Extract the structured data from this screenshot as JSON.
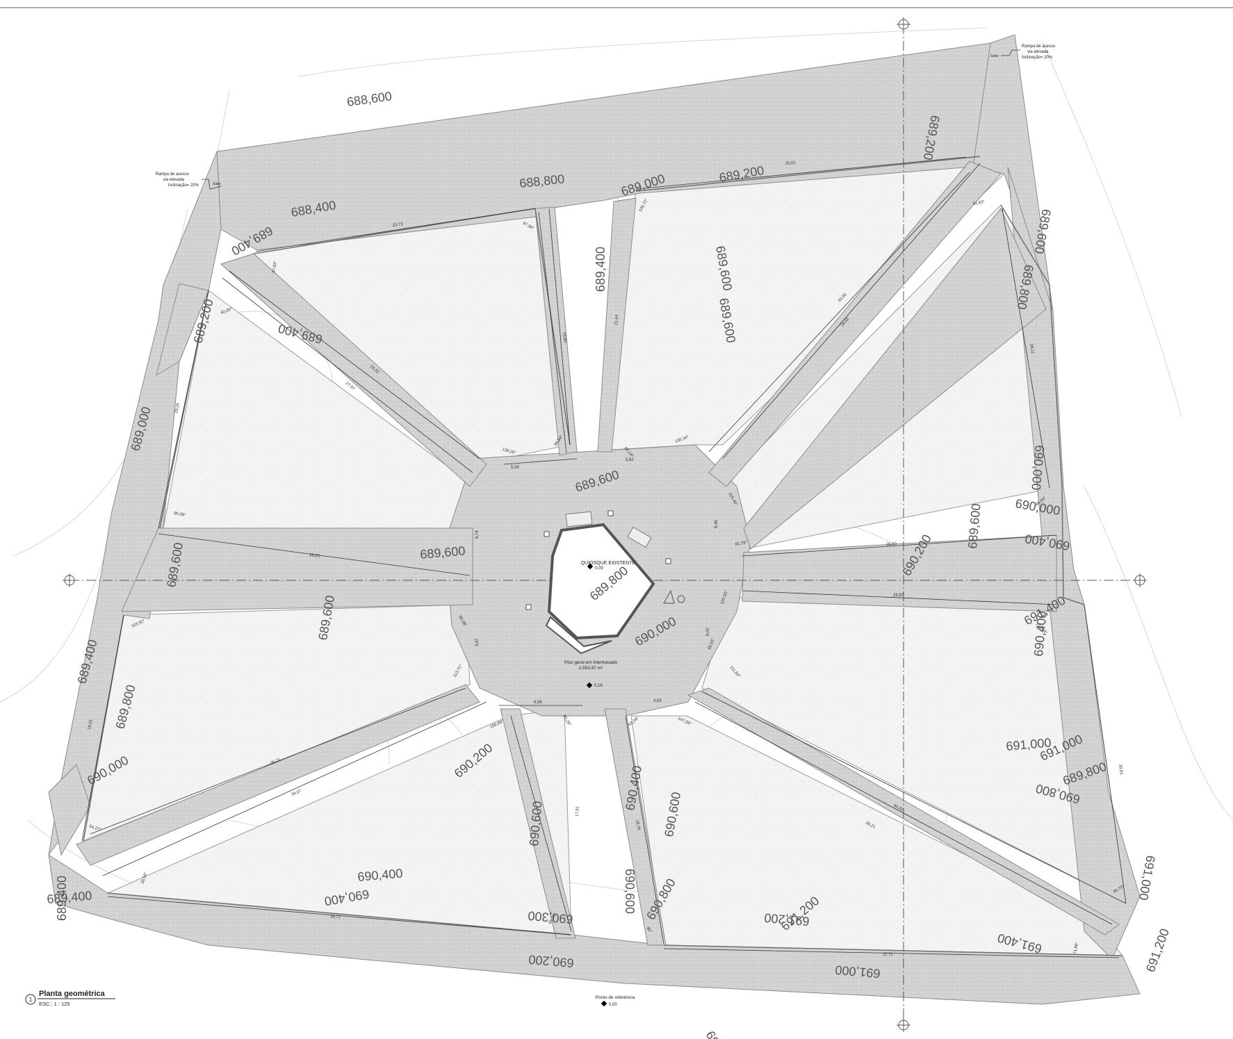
{
  "title": {
    "number": "1",
    "name": "Planta geométrica",
    "scale": "ESC.: 1 : 125"
  },
  "kiosk": {
    "label": "QUIOSQUE EXISTENTE",
    "level": "0,09"
  },
  "floor": {
    "label": "Piso geral em Intertravado",
    "area": "2.553,97 m²",
    "level": "0,19"
  },
  "reference_point": {
    "label": "Ponto de referência",
    "level": "0,00"
  },
  "ramp_notes": {
    "left": [
      "Rampa de acesso",
      "via elevada",
      "Inclinação= 20%"
    ],
    "right": [
      "Rampa de acesso",
      "via elevada",
      "Inclinação= 20%"
    ],
    "left_tag": "Sobe",
    "right_tag": "Sobe"
  },
  "contours": [
    {
      "text": "688,600"
    },
    {
      "text": "688,800"
    },
    {
      "text": "689,000"
    },
    {
      "text": "689,200"
    },
    {
      "text": "688,400"
    },
    {
      "text": "689,400"
    },
    {
      "text": "689,400"
    },
    {
      "text": "689,600"
    },
    {
      "text": "689,400"
    },
    {
      "text": "689,200"
    },
    {
      "text": "689,000"
    },
    {
      "text": "689,600"
    },
    {
      "text": "689,600"
    },
    {
      "text": "689,600"
    },
    {
      "text": "689,800"
    },
    {
      "text": "690,000"
    },
    {
      "text": "690,200"
    },
    {
      "text": "689,600"
    },
    {
      "text": "689,600"
    },
    {
      "text": "689,400"
    },
    {
      "text": "689,800"
    },
    {
      "text": "690,000"
    },
    {
      "text": "690,200"
    },
    {
      "text": "690,600"
    },
    {
      "text": "690,400"
    },
    {
      "text": "690,600"
    },
    {
      "text": "690,400"
    },
    {
      "text": "690,400"
    },
    {
      "text": "690,600"
    },
    {
      "text": "690,800"
    },
    {
      "text": "691,000"
    },
    {
      "text": "691,000"
    },
    {
      "text": "690,200"
    },
    {
      "text": "691,200"
    },
    {
      "text": "691,200"
    },
    {
      "text": "691,000"
    },
    {
      "text": "691,400"
    },
    {
      "text": "691,200"
    },
    {
      "text": "690,200"
    },
    {
      "text": "689,400"
    },
    {
      "text": "690,400"
    },
    {
      "text": "689,800"
    },
    {
      "text": "690,000"
    },
    {
      "text": "690,800"
    },
    {
      "text": "691,400"
    },
    {
      "text": "691,000"
    },
    {
      "text": "689,600"
    },
    {
      "text": "690,300"
    },
    {
      "text": "690,400"
    },
    {
      "text": "689,600"
    },
    {
      "text": "689,400"
    },
    {
      "text": "690,000"
    },
    {
      "text": "689,200"
    },
    {
      "text": "689,800"
    },
    {
      "text": "690,400"
    }
  ],
  "dimensions": [
    {
      "text": "23,72"
    },
    {
      "text": "25,01"
    },
    {
      "text": "19,85"
    },
    {
      "text": "21,44"
    },
    {
      "text": "24,42"
    },
    {
      "text": "27,97"
    },
    {
      "text": "33,56"
    },
    {
      "text": "34,82"
    },
    {
      "text": "28,11"
    },
    {
      "text": "28,25"
    },
    {
      "text": "28,50"
    },
    {
      "text": "29,97"
    },
    {
      "text": "20,29"
    },
    {
      "text": "5,09"
    },
    {
      "text": "5,62"
    },
    {
      "text": "6,74"
    },
    {
      "text": "6,36"
    },
    {
      "text": "5,87"
    },
    {
      "text": "6,02"
    },
    {
      "text": "6,58"
    },
    {
      "text": "4,69"
    },
    {
      "text": "19,51"
    },
    {
      "text": "35,71"
    },
    {
      "text": "34,67"
    },
    {
      "text": "17,61"
    },
    {
      "text": "16,76"
    },
    {
      "text": "40,42"
    },
    {
      "text": "36,21"
    },
    {
      "text": "38,72"
    },
    {
      "text": "37,71"
    },
    {
      "text": "30,81"
    },
    {
      "text": "87,98°"
    },
    {
      "text": "47,93°"
    },
    {
      "text": "106,72°"
    },
    {
      "text": "51,83°"
    },
    {
      "text": "139,26°"
    },
    {
      "text": "86,84°"
    },
    {
      "text": "80,14°"
    },
    {
      "text": "135,34°"
    },
    {
      "text": "95,09°"
    },
    {
      "text": "115,46°"
    },
    {
      "text": "81,79°"
    },
    {
      "text": "86,44°"
    },
    {
      "text": "103,92°"
    },
    {
      "text": "101,84°"
    },
    {
      "text": "120,53°"
    },
    {
      "text": "113,71°"
    },
    {
      "text": "85,08°"
    },
    {
      "text": "158,89°"
    },
    {
      "text": "85,26°"
    },
    {
      "text": "93,24°"
    },
    {
      "text": "147,06°"
    },
    {
      "text": "54,27°"
    },
    {
      "text": "28,58°"
    },
    {
      "text": "65,76°"
    },
    {
      "text": "71,88°"
    },
    {
      "text": "60,75°"
    },
    {
      "text": "90°"
    },
    {
      "text": "85,51°"
    },
    {
      "text": "40,09°"
    },
    {
      "text": "111,84°"
    }
  ],
  "colors": {
    "paving": "#d6d6d6",
    "paving_edge": "#8a8a8a",
    "green_area": "#f1f1f1",
    "contour_line": "#d2d2d2",
    "text": "#555555",
    "axis": "#555555"
  }
}
